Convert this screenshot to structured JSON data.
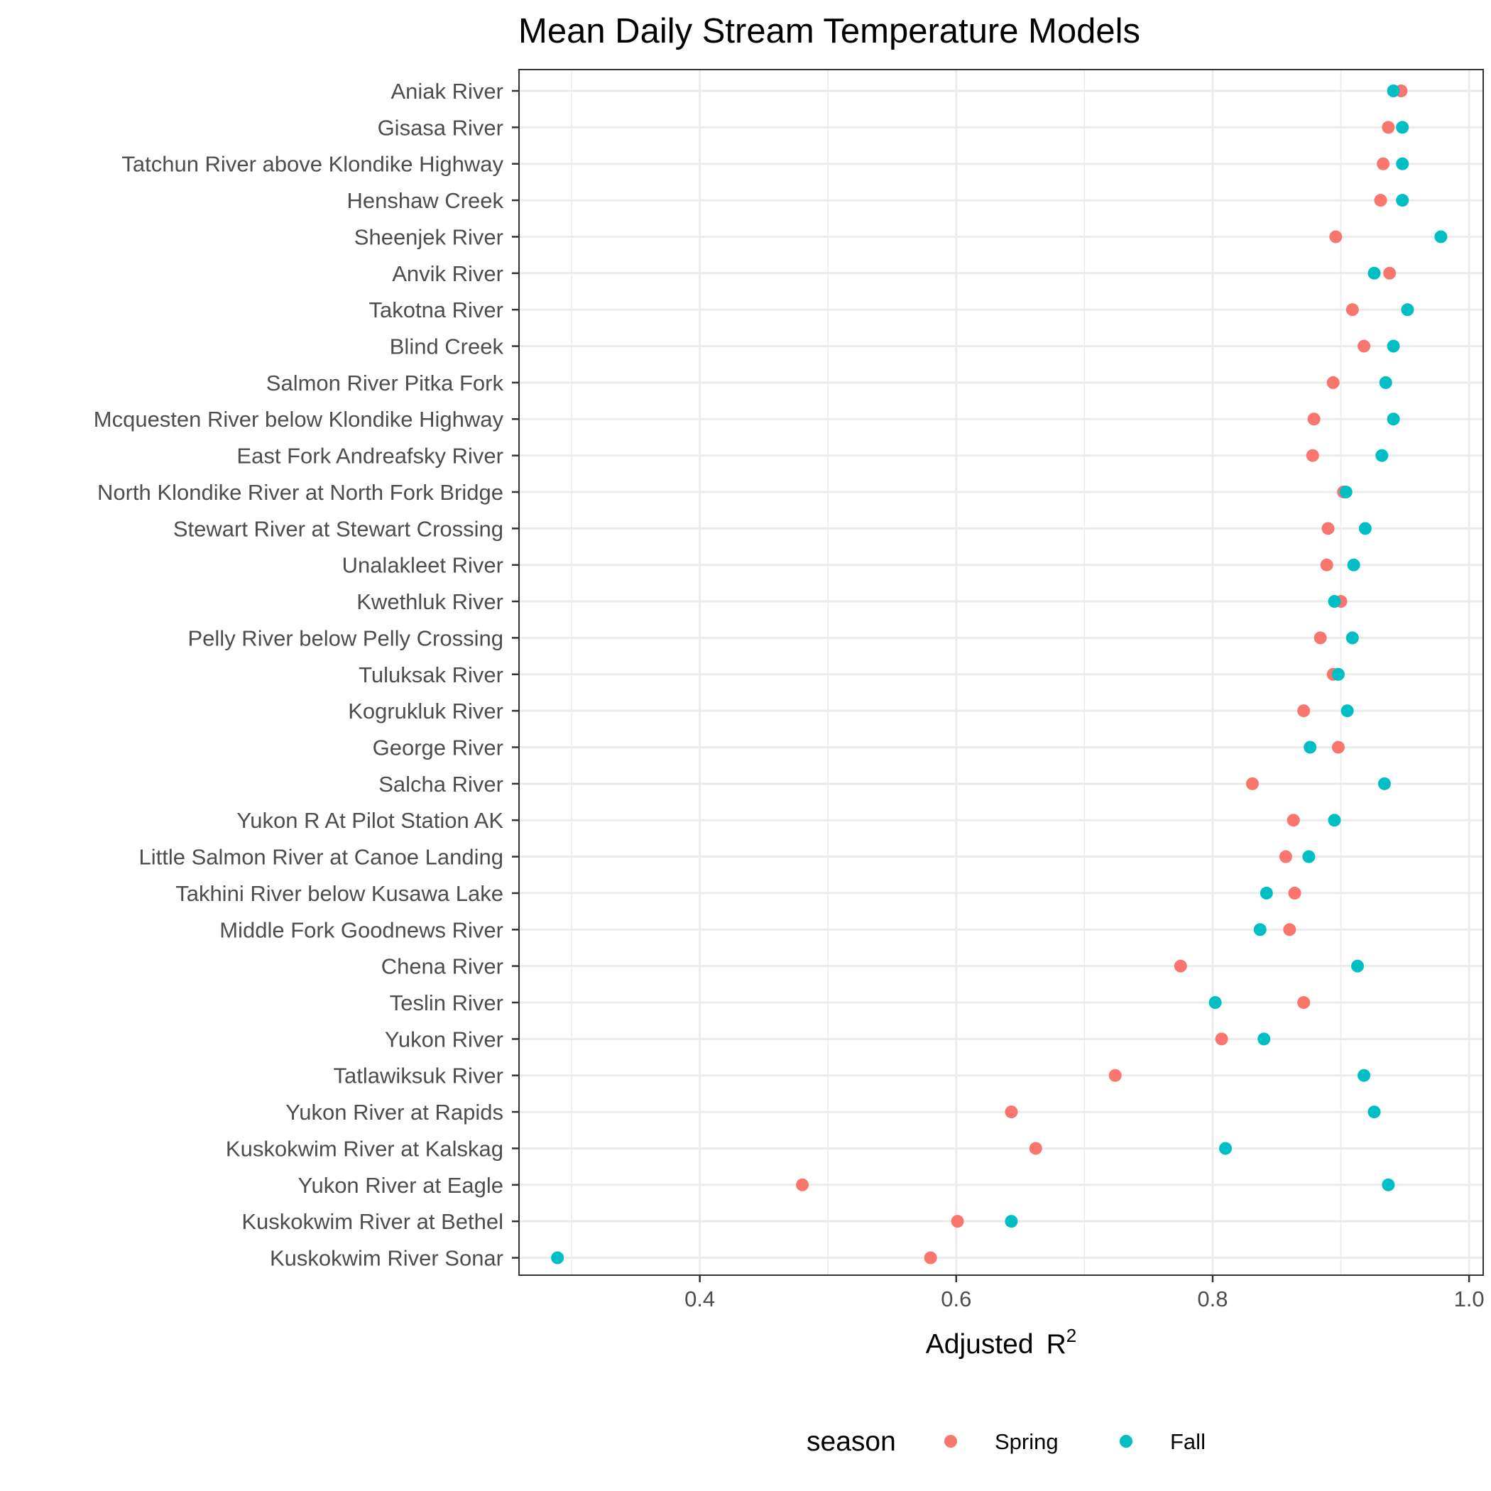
{
  "chart_data": {
    "type": "scatter",
    "title": "Mean Daily Stream Temperature Models",
    "xlabel": "Adjusted",
    "xlabel_symbol": "R",
    "xlabel_superscript": "2",
    "ylabel": "",
    "xlim": [
      0.259,
      1.011
    ],
    "xticks": [
      0.4,
      0.6,
      0.8,
      1.0
    ],
    "xtick_labels": [
      "0.4",
      "0.6",
      "0.8",
      "1.0"
    ],
    "grid": true,
    "legend": {
      "title": "season",
      "placement": "bottom"
    },
    "categories": [
      "Aniak River",
      "Gisasa River",
      "Tatchun River above Klondike Highway",
      "Henshaw Creek",
      "Sheenjek River",
      "Anvik River",
      "Takotna River",
      "Blind Creek",
      "Salmon River Pitka Fork",
      "Mcquesten River below Klondike Highway",
      "East Fork Andreafsky River",
      "North Klondike River at North Fork Bridge",
      "Stewart River at Stewart Crossing",
      "Unalakleet River",
      "Kwethluk River",
      "Pelly River below Pelly Crossing",
      "Tuluksak River",
      "Kogrukluk River",
      "George River",
      "Salcha River",
      "Yukon R At Pilot Station AK",
      "Little Salmon River at Canoe Landing",
      "Takhini River below Kusawa Lake",
      "Middle Fork Goodnews River",
      "Chena River",
      "Teslin River",
      "Yukon River",
      "Tatlawiksuk River",
      "Yukon River at Rapids",
      "Kuskokwim River at Kalskag",
      "Yukon River at Eagle",
      "Kuskokwim River at Bethel",
      "Kuskokwim River Sonar"
    ],
    "series": [
      {
        "name": "Spring",
        "color": "#F8766D",
        "values": [
          0.947,
          0.937,
          0.933,
          0.931,
          0.896,
          0.938,
          0.909,
          0.918,
          0.894,
          0.879,
          0.878,
          0.902,
          0.89,
          0.889,
          0.9,
          0.884,
          0.894,
          0.871,
          0.898,
          0.831,
          0.863,
          0.857,
          0.864,
          0.86,
          0.775,
          0.871,
          0.807,
          0.724,
          0.643,
          0.662,
          0.48,
          0.601,
          0.58
        ]
      },
      {
        "name": "Fall",
        "color": "#00BFC4",
        "values": [
          0.941,
          0.948,
          0.948,
          0.948,
          0.978,
          0.926,
          0.952,
          0.941,
          0.935,
          0.941,
          0.932,
          0.904,
          0.919,
          0.91,
          0.895,
          0.909,
          0.898,
          0.905,
          0.876,
          0.934,
          0.895,
          0.875,
          0.842,
          0.837,
          0.913,
          0.802,
          0.84,
          0.918,
          0.926,
          0.81,
          0.937,
          0.643,
          0.289
        ]
      }
    ]
  }
}
